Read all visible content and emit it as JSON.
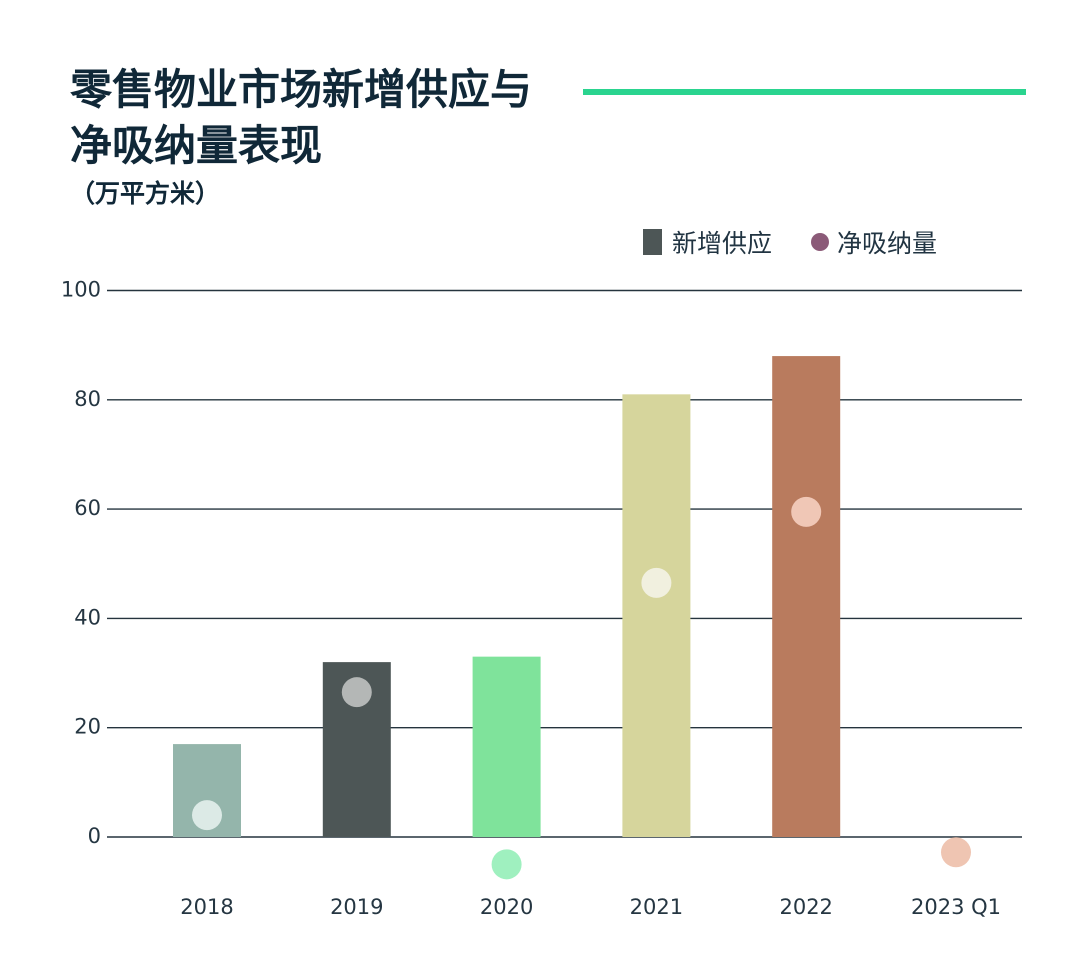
{
  "chart_data": {
    "type": "bar",
    "title": [
      "零售物业市场新增供应与",
      "净吸纳量表现"
    ],
    "unit_label": "（万平方米）",
    "legend": [
      {
        "label": "新增供应",
        "shape": "square",
        "color": "#4d5656"
      },
      {
        "label": "净吸纳量",
        "shape": "circle",
        "color": "#8b5a78"
      }
    ],
    "categories": [
      "2018",
      "2019",
      "2020",
      "2021",
      "2022",
      "2023 Q1"
    ],
    "series": [
      {
        "name": "新增供应",
        "type": "bar",
        "values": [
          17,
          32,
          33,
          81,
          88,
          null
        ],
        "colors": [
          "#94b5ab",
          "#4d5656",
          "#7fe39b",
          "#d6d59c",
          "#b97b5e",
          null
        ]
      },
      {
        "name": "净吸纳量",
        "type": "scatter",
        "values": [
          4,
          26.5,
          -5,
          46.5,
          59.5,
          -2.8
        ],
        "colors": [
          "#dceae6",
          "#b4b7b6",
          "#9ff0bf",
          "#f1f0df",
          "#f0c7b6",
          "#efc5b2"
        ]
      }
    ],
    "y_ticks": [
      "0",
      "20",
      "40",
      "60",
      "80",
      "100"
    ],
    "ylim": [
      -5,
      100
    ],
    "grid": true,
    "legend_position": "top-right",
    "accent_color": "#2ad48f"
  }
}
